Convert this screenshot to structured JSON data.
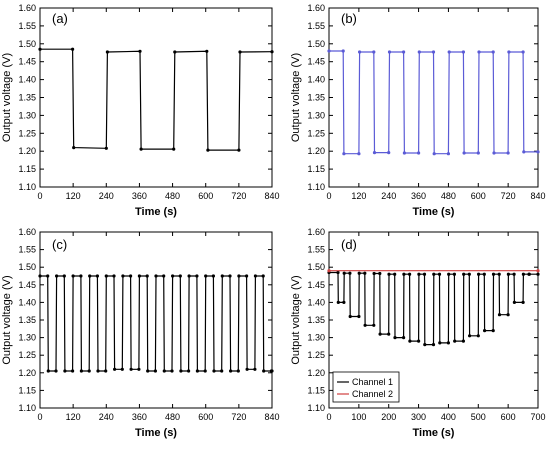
{
  "chart_data": [
    {
      "type": "line",
      "panel_label": "(a)",
      "xlabel": "Time (s)",
      "ylabel": "Output voltage (V)",
      "xlim": [
        0,
        840
      ],
      "ylim": [
        1.1,
        1.6
      ],
      "xticks": [
        0,
        120,
        240,
        360,
        480,
        600,
        720,
        840
      ],
      "yticks": [
        1.1,
        1.15,
        1.2,
        1.25,
        1.3,
        1.35,
        1.4,
        1.45,
        1.5,
        1.55,
        1.6
      ],
      "series": [
        {
          "color": "#000000",
          "x": [
            0,
            118,
            122,
            240,
            244,
            362,
            366,
            484,
            488,
            604,
            608,
            720,
            724,
            840
          ],
          "y": [
            1.485,
            1.485,
            1.21,
            1.208,
            1.477,
            1.479,
            1.206,
            1.206,
            1.477,
            1.479,
            1.203,
            1.203,
            1.477,
            1.478
          ]
        }
      ]
    },
    {
      "type": "line",
      "panel_label": "(b)",
      "xlabel": "Time (s)",
      "ylabel": "Output voltage (V)",
      "xlim": [
        0,
        840
      ],
      "ylim": [
        1.1,
        1.6
      ],
      "xticks": [
        0,
        120,
        240,
        360,
        480,
        600,
        720,
        840
      ],
      "yticks": [
        1.1,
        1.15,
        1.2,
        1.25,
        1.3,
        1.35,
        1.4,
        1.45,
        1.5,
        1.55,
        1.6
      ],
      "series": [
        {
          "color": "#5b5bd6",
          "x": [
            0,
            57,
            60,
            120,
            123,
            180,
            183,
            240,
            243,
            300,
            303,
            360,
            363,
            420,
            423,
            480,
            483,
            540,
            543,
            600,
            603,
            660,
            663,
            720,
            723,
            780,
            783,
            840
          ],
          "y": [
            1.48,
            1.48,
            1.193,
            1.193,
            1.477,
            1.477,
            1.196,
            1.196,
            1.477,
            1.477,
            1.195,
            1.195,
            1.477,
            1.477,
            1.193,
            1.193,
            1.477,
            1.477,
            1.195,
            1.195,
            1.477,
            1.477,
            1.195,
            1.195,
            1.477,
            1.477,
            1.198,
            1.198
          ]
        }
      ]
    },
    {
      "type": "line",
      "panel_label": "(c)",
      "xlabel": "Time (s)",
      "ylabel": "Output voltage (V)",
      "xlim": [
        0,
        840
      ],
      "ylim": [
        1.1,
        1.6
      ],
      "xticks": [
        0,
        120,
        240,
        360,
        480,
        600,
        720,
        840
      ],
      "yticks": [
        1.1,
        1.15,
        1.2,
        1.25,
        1.3,
        1.35,
        1.4,
        1.45,
        1.5,
        1.55,
        1.6
      ],
      "series": [
        {
          "color": "#000000",
          "x": [
            0,
            28,
            30,
            58,
            60,
            88,
            90,
            118,
            120,
            148,
            150,
            178,
            180,
            208,
            210,
            238,
            240,
            268,
            270,
            298,
            300,
            328,
            330,
            358,
            360,
            388,
            390,
            418,
            420,
            448,
            450,
            478,
            480,
            508,
            510,
            538,
            540,
            568,
            570,
            598,
            600,
            628,
            630,
            658,
            660,
            688,
            690,
            718,
            720,
            748,
            750,
            778,
            780,
            808,
            810,
            838,
            840
          ],
          "y": [
            1.475,
            1.475,
            1.205,
            1.205,
            1.475,
            1.475,
            1.205,
            1.205,
            1.475,
            1.475,
            1.205,
            1.205,
            1.475,
            1.475,
            1.205,
            1.205,
            1.475,
            1.475,
            1.21,
            1.21,
            1.475,
            1.475,
            1.21,
            1.21,
            1.475,
            1.475,
            1.205,
            1.205,
            1.475,
            1.475,
            1.205,
            1.205,
            1.475,
            1.475,
            1.205,
            1.205,
            1.475,
            1.475,
            1.205,
            1.205,
            1.475,
            1.475,
            1.205,
            1.205,
            1.475,
            1.475,
            1.205,
            1.205,
            1.475,
            1.475,
            1.21,
            1.21,
            1.475,
            1.475,
            1.205,
            1.205,
            1.205
          ]
        }
      ]
    },
    {
      "type": "line",
      "panel_label": "(d)",
      "xlabel": "Time (s)",
      "ylabel": "Output voltage (V)",
      "xlim": [
        0,
        700
      ],
      "ylim": [
        1.1,
        1.6
      ],
      "xticks": [
        0,
        100,
        200,
        300,
        400,
        500,
        600,
        700
      ],
      "yticks": [
        1.1,
        1.15,
        1.2,
        1.25,
        1.3,
        1.35,
        1.4,
        1.45,
        1.5,
        1.55,
        1.6
      ],
      "legend": "bottom-left",
      "series": [
        {
          "name": "Channel 1",
          "color": "#000000",
          "x": [
            0,
            30,
            31,
            50,
            51,
            70,
            71,
            100,
            101,
            120,
            121,
            150,
            151,
            170,
            171,
            200,
            201,
            220,
            221,
            250,
            251,
            270,
            271,
            300,
            301,
            320,
            321,
            350,
            351,
            370,
            371,
            400,
            401,
            420,
            421,
            450,
            451,
            470,
            471,
            500,
            501,
            520,
            521,
            550,
            551,
            570,
            571,
            600,
            601,
            620,
            621,
            650,
            651,
            670,
            671,
            700
          ],
          "y": [
            1.485,
            1.485,
            1.4,
            1.4,
            1.483,
            1.483,
            1.36,
            1.36,
            1.483,
            1.483,
            1.335,
            1.335,
            1.482,
            1.482,
            1.31,
            1.31,
            1.48,
            1.48,
            1.3,
            1.3,
            1.48,
            1.48,
            1.29,
            1.29,
            1.48,
            1.48,
            1.28,
            1.28,
            1.48,
            1.48,
            1.285,
            1.285,
            1.48,
            1.48,
            1.29,
            1.29,
            1.48,
            1.48,
            1.305,
            1.305,
            1.48,
            1.48,
            1.32,
            1.32,
            1.48,
            1.48,
            1.365,
            1.365,
            1.48,
            1.48,
            1.4,
            1.4,
            1.48,
            1.48,
            1.48,
            1.48
          ]
        },
        {
          "name": "Channel 2",
          "color": "#d04040",
          "x": [
            0,
            700
          ],
          "y": [
            1.49,
            1.49
          ]
        }
      ]
    }
  ]
}
